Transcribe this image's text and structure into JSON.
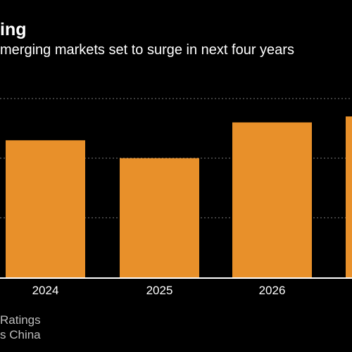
{
  "title": "ing",
  "subtitle": "merging markets set to surge in next four years",
  "colors": {
    "background": "#000000",
    "bar": "#e8902a",
    "gridline": "#7a7a7a",
    "axis": "#ffffff",
    "text": "#ffffff",
    "footnote": "#bdbdbd"
  },
  "chart_data": {
    "type": "bar",
    "categories": [
      "2024",
      "2025",
      "2026"
    ],
    "values": [
      2.3,
      2.0,
      2.6
    ],
    "partial_fifth_bar_value": 2.7,
    "ylim": [
      0,
      3.0
    ],
    "gridlines_at": [
      1,
      2,
      3
    ],
    "grid": true,
    "legend": "none"
  },
  "footnote": {
    "line1": "Ratings",
    "line2": "s China"
  }
}
